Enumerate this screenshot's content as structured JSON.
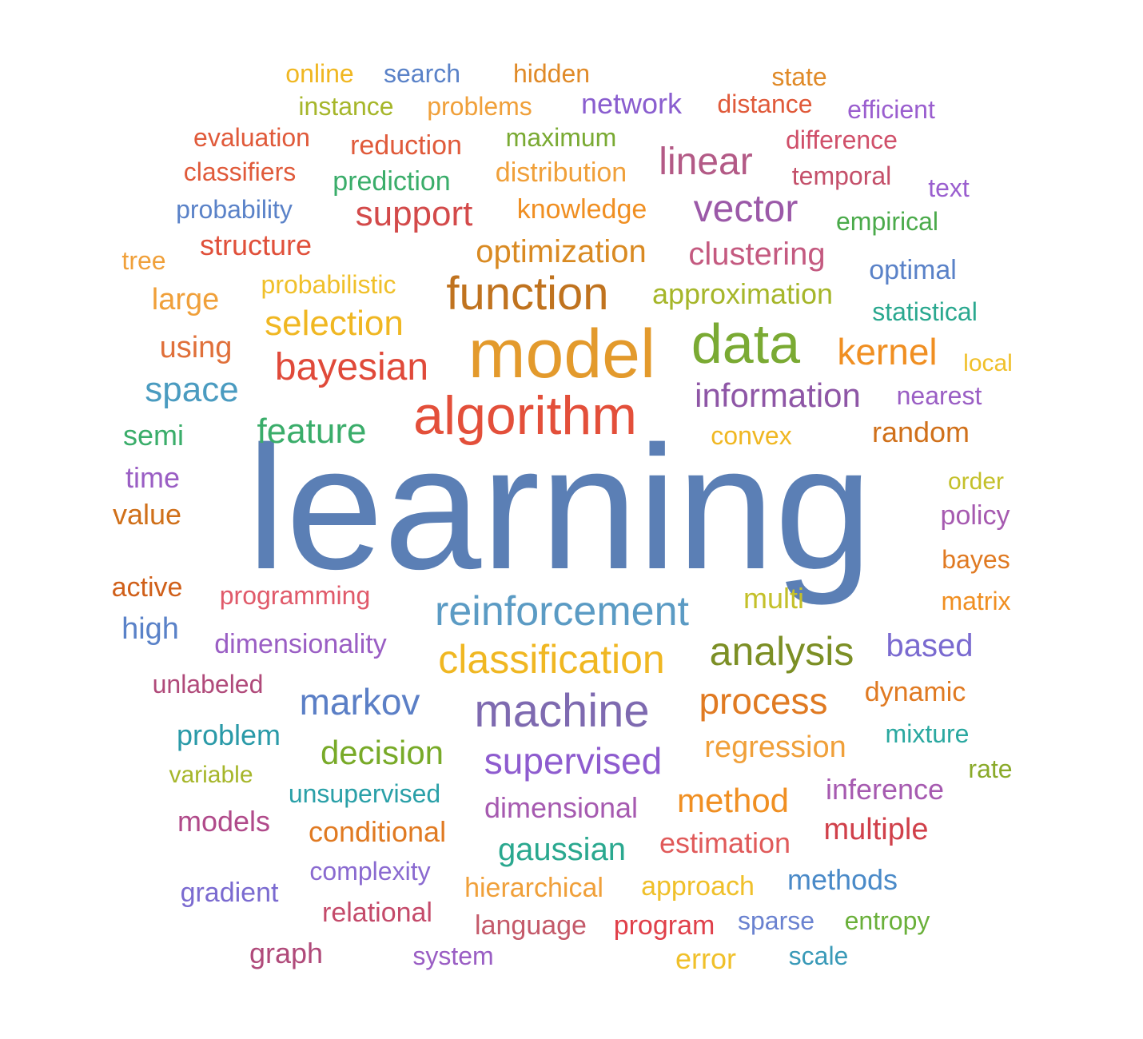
{
  "words": [
    {
      "text": "learning",
      "color": "#5b7fb5"
    },
    {
      "text": "model",
      "color": "#e39a2c"
    },
    {
      "text": "algorithm",
      "color": "#e34f3a"
    },
    {
      "text": "data",
      "color": "#7aaa33"
    },
    {
      "text": "function",
      "color": "#c0731f"
    },
    {
      "text": "machine",
      "color": "#7e6ab0"
    },
    {
      "text": "reinforcement",
      "color": "#5b9bc4"
    },
    {
      "text": "classification",
      "color": "#f0b722"
    },
    {
      "text": "analysis",
      "color": "#7c8f25"
    },
    {
      "text": "bayesian",
      "color": "#e04a3a"
    },
    {
      "text": "vector",
      "color": "#9b59a8"
    },
    {
      "text": "linear",
      "color": "#b35a86"
    },
    {
      "text": "information",
      "color": "#8e56a6"
    },
    {
      "text": "kernel",
      "color": "#f08f22"
    },
    {
      "text": "process",
      "color": "#e07a22"
    },
    {
      "text": "markov",
      "color": "#5b7fc6"
    },
    {
      "text": "supervised",
      "color": "#8e5ccf"
    },
    {
      "text": "feature",
      "color": "#3aad6a"
    },
    {
      "text": "space",
      "color": "#4a9bc0"
    },
    {
      "text": "selection",
      "color": "#f0b722"
    },
    {
      "text": "support",
      "color": "#d34a4a"
    },
    {
      "text": "optimization",
      "color": "#d98a22"
    },
    {
      "text": "clustering",
      "color": "#c45a80"
    },
    {
      "text": "decision",
      "color": "#78aa28"
    },
    {
      "text": "regression",
      "color": "#f0a03a"
    },
    {
      "text": "method",
      "color": "#f08f22"
    },
    {
      "text": "gaussian",
      "color": "#2aa88f"
    },
    {
      "text": "online",
      "color": "#f0b722"
    },
    {
      "text": "search",
      "color": "#5a82c8"
    },
    {
      "text": "hidden",
      "color": "#e08a28"
    },
    {
      "text": "state",
      "color": "#e08a28"
    },
    {
      "text": "instance",
      "color": "#a6b62a"
    },
    {
      "text": "problems",
      "color": "#f0a03a"
    },
    {
      "text": "network",
      "color": "#8a5ecf"
    },
    {
      "text": "distance",
      "color": "#e05a3a"
    },
    {
      "text": "efficient",
      "color": "#9a5ecf"
    },
    {
      "text": "evaluation",
      "color": "#e05a3a"
    },
    {
      "text": "reduction",
      "color": "#e05a3a"
    },
    {
      "text": "maximum",
      "color": "#7aaa33"
    },
    {
      "text": "difference",
      "color": "#d0506a"
    },
    {
      "text": "classifiers",
      "color": "#e05a3a"
    },
    {
      "text": "prediction",
      "color": "#3aad6a"
    },
    {
      "text": "distribution",
      "color": "#f0a03a"
    },
    {
      "text": "temporal",
      "color": "#c4506a"
    },
    {
      "text": "text",
      "color": "#9a5ecf"
    },
    {
      "text": "probability",
      "color": "#5a82c8"
    },
    {
      "text": "knowledge",
      "color": "#f08f22"
    },
    {
      "text": "empirical",
      "color": "#4aaa4a"
    },
    {
      "text": "structure",
      "color": "#e0503a"
    },
    {
      "text": "tree",
      "color": "#f0a03a"
    },
    {
      "text": "optimal",
      "color": "#5a82c8"
    },
    {
      "text": "probabilistic",
      "color": "#f0c02a"
    },
    {
      "text": "approximation",
      "color": "#a6b62a"
    },
    {
      "text": "large",
      "color": "#f0a03a"
    },
    {
      "text": "statistical",
      "color": "#2aa88f"
    },
    {
      "text": "using",
      "color": "#e0703a"
    },
    {
      "text": "local",
      "color": "#f0c02a"
    },
    {
      "text": "nearest",
      "color": "#9a5ec4"
    },
    {
      "text": "semi",
      "color": "#3aad6a"
    },
    {
      "text": "convex",
      "color": "#f0b722"
    },
    {
      "text": "random",
      "color": "#d0701a"
    },
    {
      "text": "time",
      "color": "#9a5ec4"
    },
    {
      "text": "order",
      "color": "#c4c02a"
    },
    {
      "text": "value",
      "color": "#d0701a"
    },
    {
      "text": "policy",
      "color": "#a65ab0"
    },
    {
      "text": "bayes",
      "color": "#e07a22"
    },
    {
      "text": "active",
      "color": "#d0601a"
    },
    {
      "text": "programming",
      "color": "#e05a6a"
    },
    {
      "text": "multi",
      "color": "#c4c02a"
    },
    {
      "text": "matrix",
      "color": "#f08f22"
    },
    {
      "text": "high",
      "color": "#5a82c8"
    },
    {
      "text": "dimensionality",
      "color": "#9a5ec4"
    },
    {
      "text": "based",
      "color": "#7a6ad0"
    },
    {
      "text": "unlabeled",
      "color": "#b04a7a"
    },
    {
      "text": "dynamic",
      "color": "#e07a22"
    },
    {
      "text": "problem",
      "color": "#2a9aa8"
    },
    {
      "text": "mixture",
      "color": "#2aa8a0"
    },
    {
      "text": "variable",
      "color": "#a6b62a"
    },
    {
      "text": "rate",
      "color": "#8aaa2a"
    },
    {
      "text": "unsupervised",
      "color": "#2aa0a8"
    },
    {
      "text": "dimensional",
      "color": "#a65ab0"
    },
    {
      "text": "inference",
      "color": "#a65ab0"
    },
    {
      "text": "models",
      "color": "#b04a8a"
    },
    {
      "text": "conditional",
      "color": "#e07a22"
    },
    {
      "text": "multiple",
      "color": "#d0404a"
    },
    {
      "text": "estimation",
      "color": "#e05a5a"
    },
    {
      "text": "complexity",
      "color": "#8a6ad0"
    },
    {
      "text": "gradient",
      "color": "#7a6ad0"
    },
    {
      "text": "hierarchical",
      "color": "#f0a03a"
    },
    {
      "text": "approach",
      "color": "#f0c02a"
    },
    {
      "text": "methods",
      "color": "#4a8ac8"
    },
    {
      "text": "relational",
      "color": "#c44a6a"
    },
    {
      "text": "language",
      "color": "#c45a6a"
    },
    {
      "text": "program",
      "color": "#e0404a"
    },
    {
      "text": "sparse",
      "color": "#6a82d0"
    },
    {
      "text": "entropy",
      "color": "#6ab03a"
    },
    {
      "text": "graph",
      "color": "#b04a7a"
    },
    {
      "text": "system",
      "color": "#9a5ec4"
    },
    {
      "text": "error",
      "color": "#f0c02a"
    },
    {
      "text": "scale",
      "color": "#3a9ab8"
    }
  ]
}
